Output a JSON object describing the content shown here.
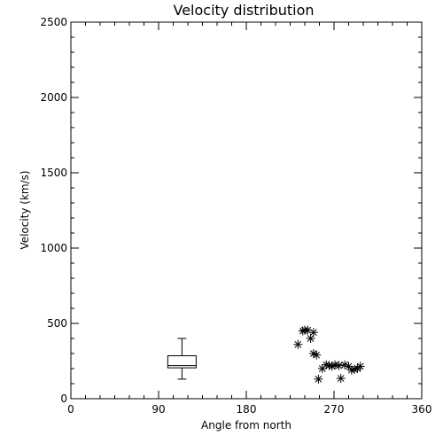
{
  "chart_data": {
    "type": "scatter",
    "title": "Velocity distribution",
    "xlabel": "Angle from north",
    "ylabel": "Velocity (km/s)",
    "xlim": [
      0,
      360
    ],
    "ylim": [
      0,
      2500
    ],
    "x_ticks": [
      {
        "value": 0,
        "label": "0"
      },
      {
        "value": 90,
        "label": "90"
      },
      {
        "value": 180,
        "label": "180"
      },
      {
        "value": 270,
        "label": "270"
      },
      {
        "value": 360,
        "label": "360"
      }
    ],
    "x_minor_step": 15,
    "y_ticks": [
      {
        "value": 0,
        "label": "0"
      },
      {
        "value": 500,
        "label": "500"
      },
      {
        "value": 1000,
        "label": "1000"
      },
      {
        "value": 1500,
        "label": "1500"
      },
      {
        "value": 2000,
        "label": "2000"
      },
      {
        "value": 2500,
        "label": "2500"
      }
    ],
    "y_minor_step": 100,
    "grid": false,
    "boxplot": {
      "x": 114,
      "min": 130,
      "q1": 205,
      "median": 220,
      "q3": 285,
      "max": 400
    },
    "points": [
      {
        "x": 233,
        "y": 360
      },
      {
        "x": 238,
        "y": 450
      },
      {
        "x": 240,
        "y": 455
      },
      {
        "x": 243,
        "y": 455
      },
      {
        "x": 246,
        "y": 400
      },
      {
        "x": 249,
        "y": 440
      },
      {
        "x": 249,
        "y": 300
      },
      {
        "x": 252,
        "y": 290
      },
      {
        "x": 254,
        "y": 130
      },
      {
        "x": 258,
        "y": 200
      },
      {
        "x": 262,
        "y": 225
      },
      {
        "x": 265,
        "y": 220
      },
      {
        "x": 268,
        "y": 215
      },
      {
        "x": 271,
        "y": 225
      },
      {
        "x": 275,
        "y": 220
      },
      {
        "x": 277,
        "y": 135
      },
      {
        "x": 281,
        "y": 225
      },
      {
        "x": 285,
        "y": 215
      },
      {
        "x": 288,
        "y": 190
      },
      {
        "x": 291,
        "y": 195
      },
      {
        "x": 294,
        "y": 200
      },
      {
        "x": 297,
        "y": 215
      }
    ]
  }
}
